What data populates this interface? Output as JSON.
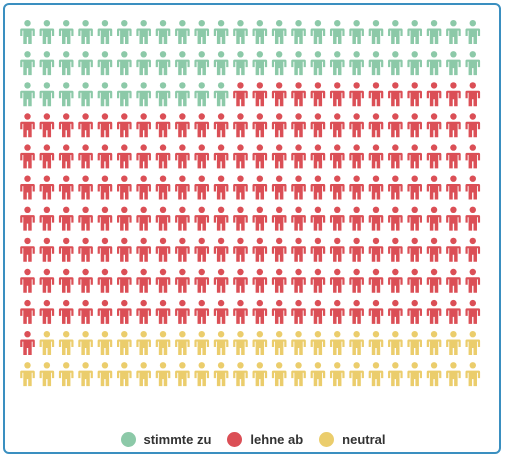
{
  "chart_data": {
    "type": "waffle",
    "unit": "person-icon",
    "columns": 24,
    "rows": 12,
    "total": 288,
    "series": [
      {
        "name": "stimmte zu",
        "value": 59,
        "color": "#8cc9a8"
      },
      {
        "name": "lehne ab",
        "value": 182,
        "color": "#db4f56"
      },
      {
        "name": "neutral",
        "value": 47,
        "color": "#ebcd6c"
      }
    ],
    "legend_position": "bottom-center"
  }
}
